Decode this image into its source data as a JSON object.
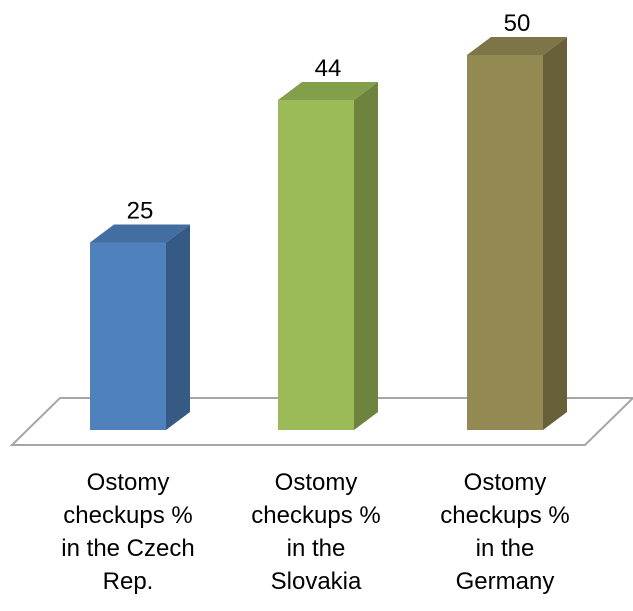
{
  "chart_data": {
    "type": "bar3d",
    "categories": [
      "Ostomy checkups % in the Czech Rep.",
      "Ostomy checkups % in the Slovakia",
      "Ostomy checkups % in the Germany"
    ],
    "values": [
      25,
      44,
      50
    ],
    "colors": [
      "#4f81bd",
      "#9bbb59",
      "#938953"
    ]
  }
}
